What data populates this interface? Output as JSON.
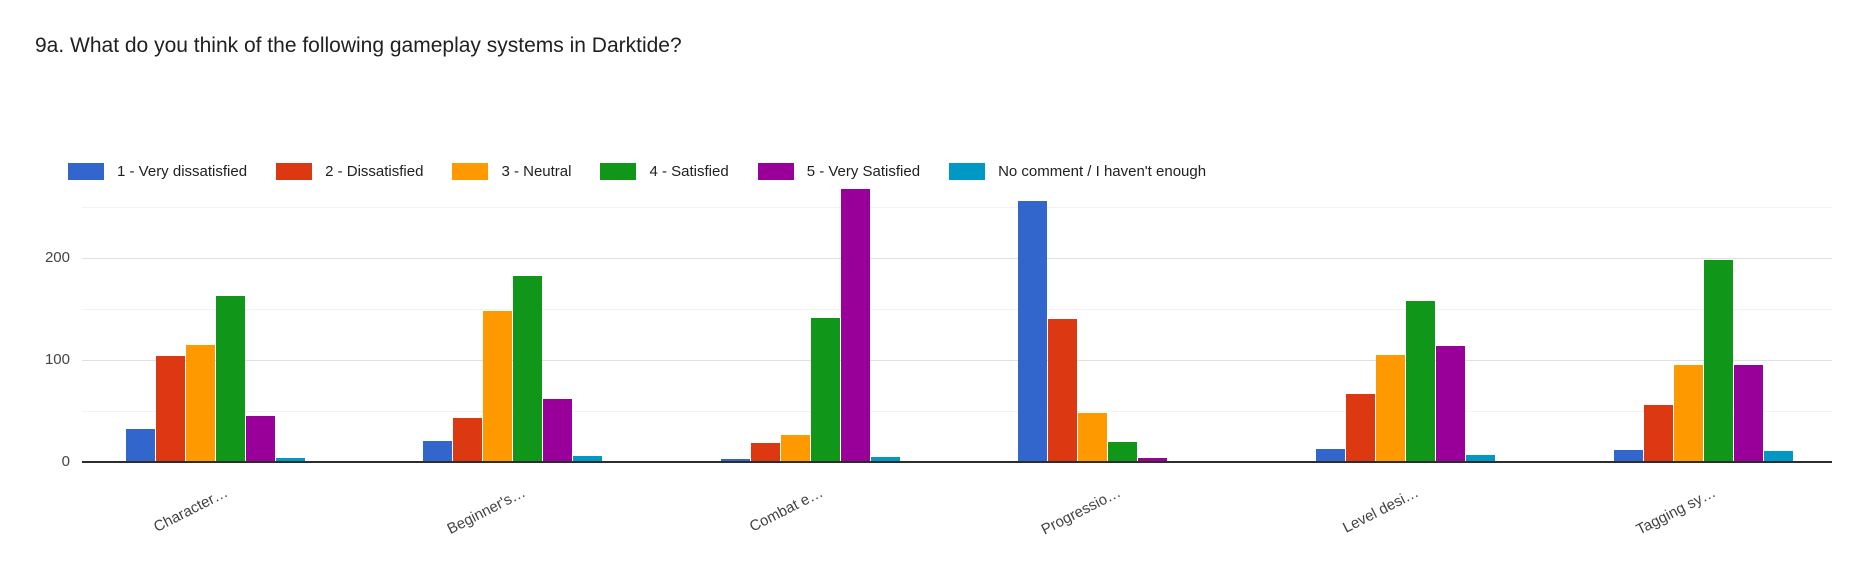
{
  "chart_data": {
    "type": "bar",
    "title": "9a. What do you think of the following gameplay systems in Darktide?",
    "categories": [
      "Character…",
      "Beginner's…",
      "Combat e…",
      "Progressio…",
      "Level desi…",
      "Tagging sy…"
    ],
    "series": [
      {
        "name": "1 - Very dissatisfied",
        "color": "#3366CC",
        "values": [
          32,
          21,
          3,
          256,
          13,
          12
        ]
      },
      {
        "name": "2 - Dissatisfied",
        "color": "#DC3912",
        "values": [
          104,
          43,
          19,
          140,
          67,
          56
        ]
      },
      {
        "name": "3 - Neutral",
        "color": "#FF9900",
        "values": [
          115,
          148,
          26,
          48,
          105,
          95
        ]
      },
      {
        "name": "4 - Satisfied",
        "color": "#109618",
        "values": [
          163,
          182,
          141,
          20,
          158,
          198
        ]
      },
      {
        "name": "5 - Very Satisfied",
        "color": "#990099",
        "values": [
          45,
          62,
          268,
          4,
          114,
          95
        ]
      },
      {
        "name": "No comment / I haven't enough",
        "color": "#0099C6",
        "values": [
          4,
          6,
          5,
          1,
          7,
          11
        ]
      }
    ],
    "yticks": [
      0,
      100,
      200
    ],
    "minor_gridlines": [
      50,
      150,
      250
    ],
    "major_gridlines": [
      100,
      200
    ],
    "ylim": [
      0,
      280
    ],
    "legend_position": "top",
    "grid": "on"
  }
}
